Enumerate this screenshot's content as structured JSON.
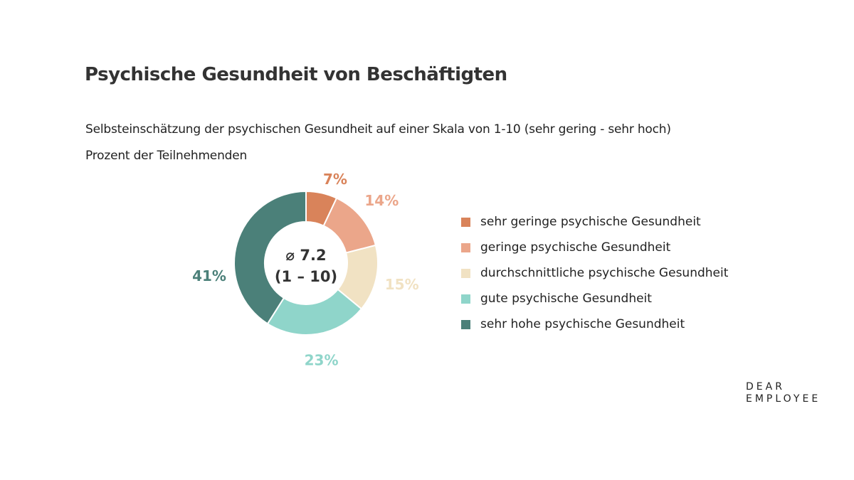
{
  "chart_data": {
    "type": "pie",
    "variant": "donut",
    "title": "Psychische Gesundheit von Beschäftigten",
    "subtitle": "Selbsteinschätzung der psychischen Gesundheit auf einer Skala von 1-10 (sehr gering - sehr hoch)",
    "unit_label": "Prozent der Teilnehmenden",
    "center_label": [
      "⌀ 7.2",
      "(1 – 10)"
    ],
    "legend_position": "right",
    "slices": [
      {
        "name": "sehr geringe psychische Gesundheit",
        "value": 7,
        "label": "7%",
        "color": "#d9835a"
      },
      {
        "name": "geringe psychische Gesundheit",
        "value": 14,
        "label": "14%",
        "color": "#eba68a"
      },
      {
        "name": "durchschnittliche psychische Gesundheit",
        "value": 15,
        "label": "15%",
        "color": "#f1e2c3"
      },
      {
        "name": "gute psychische Gesundheit",
        "value": 23,
        "label": "23%",
        "color": "#8fd5ca"
      },
      {
        "name": "sehr hohe psychische Gesundheit",
        "value": 41,
        "label": "41%",
        "color": "#4b8079"
      }
    ]
  },
  "logo": {
    "line1": "DEAR",
    "line2": "EMPLOYEE"
  }
}
